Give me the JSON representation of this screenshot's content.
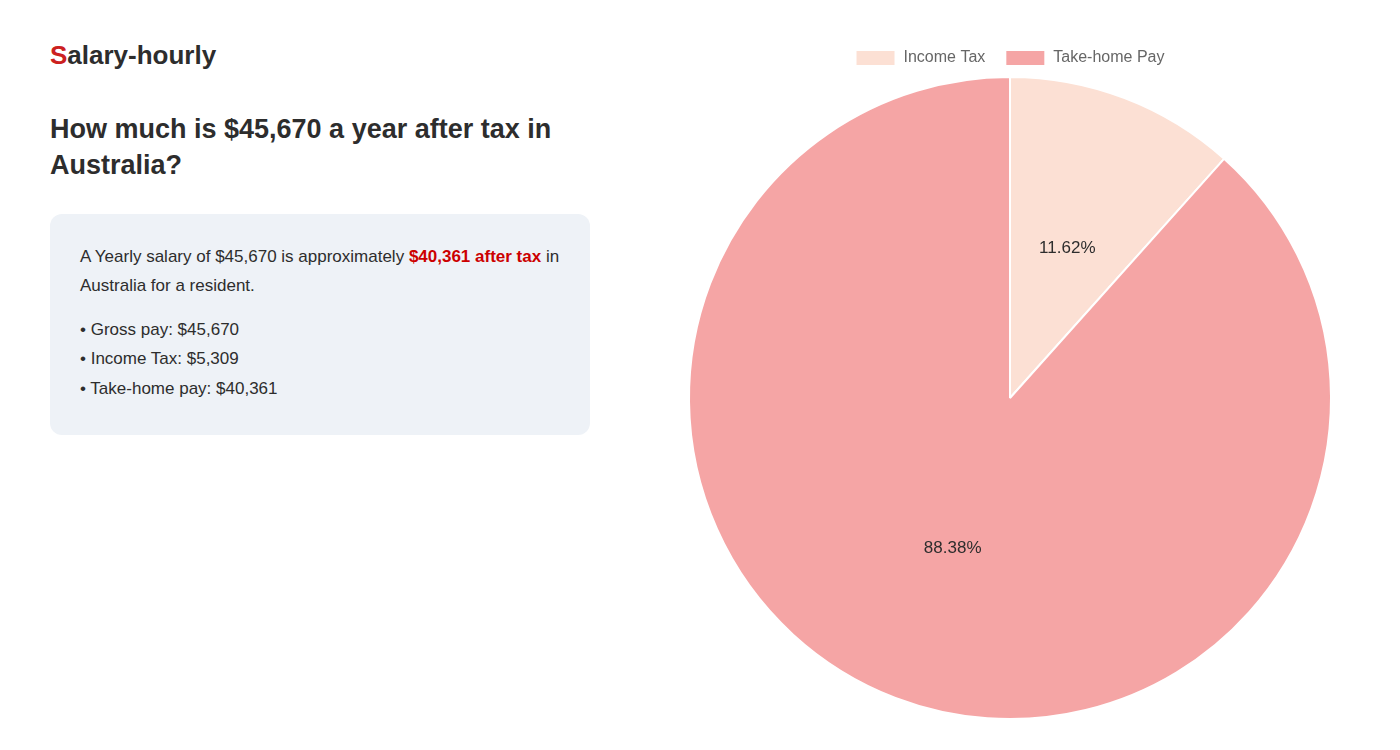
{
  "chart_data": {
    "type": "pie",
    "title": [
      "How much is $45,670 a year after tax in",
      "Australia?"
    ],
    "annotations": [
      [
        {
          "text": "S",
          "color": "#cc2020"
        },
        {
          "text": "alary-hourly"
        }
      ],
      [
        {
          "text": "A Yearly salary of $45,670 is approximately "
        },
        {
          "text": "$40,361 after tax",
          "color": "#cc0000"
        },
        {
          "text": " in"
        }
      ],
      [
        {
          "text": "Australia for a resident."
        }
      ],
      [
        {
          "text": "• Gross pay: $45,670"
        }
      ],
      [
        {
          "text": "• Income Tax: $5,309"
        }
      ],
      [
        {
          "text": "• Take-home pay: $40,361"
        }
      ]
    ],
    "categories": [
      "Income Tax",
      "Take-home Pay"
    ],
    "values": [
      11.62,
      88.38
    ],
    "value_labels": [
      "11.62%",
      "88.38%"
    ],
    "colors": [
      "#fce0d4",
      "#f5a5a5"
    ],
    "data_labels": true,
    "legend": "top"
  }
}
